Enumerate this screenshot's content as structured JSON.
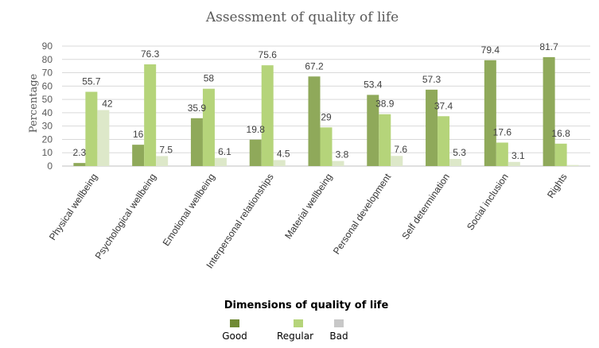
{
  "chart_data": {
    "type": "bar",
    "title": "Assessment of quality of life",
    "xlabel": "Dimensions of quality of life",
    "ylabel": "Percentage",
    "ylim": [
      0,
      90
    ],
    "yticks": [
      0,
      10,
      20,
      30,
      40,
      50,
      60,
      70,
      80,
      90
    ],
    "grid": true,
    "legend_position": "bottom",
    "categories": [
      "Physical wellbeing",
      "Psychological wellbeing",
      "Emotional wellbeing",
      "Interpersonal relationships",
      "Material wellbeing",
      "Personal development",
      "Self determination",
      "Social inclusion",
      "Rights"
    ],
    "series": [
      {
        "name": "Good",
        "color": "#8fa95a",
        "values": [
          2.3,
          16,
          35.9,
          19.8,
          67.2,
          53.4,
          57.3,
          79.4,
          81.7
        ],
        "labels": [
          "2.3",
          "16",
          "35.9",
          "19.8",
          "67.2",
          "53.4",
          "57.3",
          "79.4",
          "81.7"
        ]
      },
      {
        "name": "Regular",
        "color": "#b5d47a",
        "values": [
          55.7,
          76.3,
          58,
          75.6,
          29,
          38.9,
          37.4,
          17.6,
          16.8
        ],
        "labels": [
          "55.7",
          "76.3",
          "58",
          "75.6",
          "29",
          "38.9",
          "37.4",
          "17.6",
          "16.8"
        ]
      },
      {
        "name": "Bad",
        "color": "#dde8c9",
        "values": [
          42,
          7.5,
          6.1,
          4.5,
          3.8,
          7.6,
          5.3,
          3.1,
          0.8
        ],
        "labels": [
          "42",
          "7.5",
          "6.1",
          "4.5",
          "3.8",
          "7.6",
          "5.3",
          "3.1",
          ""
        ]
      }
    ],
    "legend_swatches": [
      "#708a35",
      "#b5d47a",
      "#c8c8c8"
    ]
  }
}
